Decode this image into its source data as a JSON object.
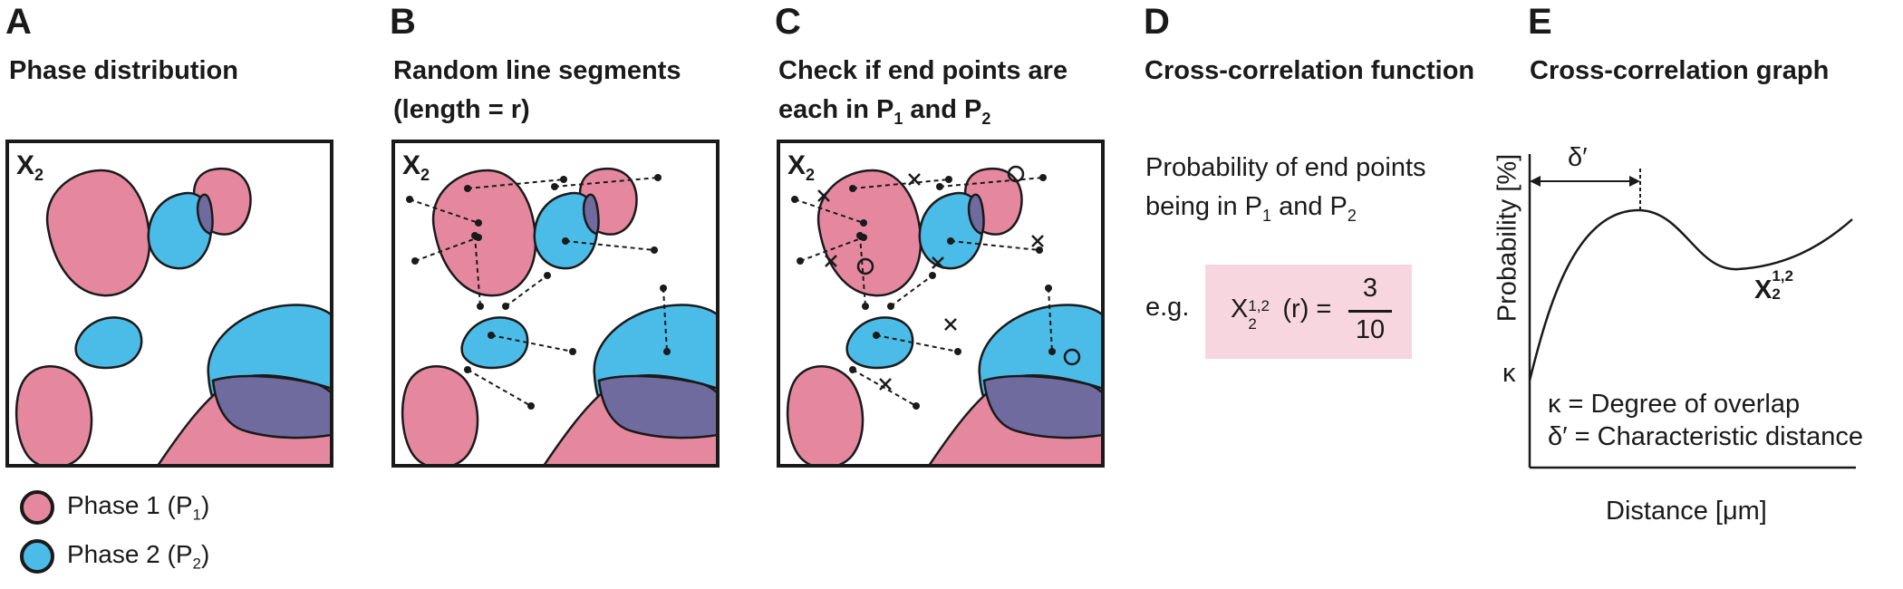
{
  "panels": {
    "a": {
      "letter": "A",
      "title": "Phase distribution"
    },
    "b": {
      "letter": "B",
      "title_line1": "Random line segments",
      "title_line2": "(length = r)"
    },
    "c": {
      "letter": "C",
      "title_line1": "Check if end points are",
      "title_line2_pre": "each in P",
      "title_line2_sub1": "1",
      "title_line2_mid": " and P",
      "title_line2_sub2": "2"
    },
    "d": {
      "letter": "D",
      "title": "Cross-correlation function"
    },
    "e": {
      "letter": "E",
      "title": "Cross-correlation graph"
    }
  },
  "box_label": {
    "base": "X",
    "sub": "2"
  },
  "legend": {
    "phase1": {
      "label_pre": "Phase 1 (P",
      "label_sub": "1",
      "label_post": ")",
      "color": "#e5889f"
    },
    "phase2": {
      "label_pre": "Phase 2 (P",
      "label_sub": "2",
      "label_post": ")",
      "color": "#4bbbe8"
    }
  },
  "colors": {
    "phase1": "#e5889f",
    "phase2": "#4bbbe8",
    "overlap": "#6f6b9e",
    "outline": "#1a1a1a",
    "formula_bg": "#f7d6df"
  },
  "panel_d": {
    "line1": "Probability of end points",
    "line2_pre": "being in P",
    "line2_sub1": "1",
    "line2_mid": " and P",
    "line2_sub2": "2",
    "eg": "e.g.",
    "formula_base": "X",
    "formula_sub": "2",
    "formula_sup": "1,2",
    "formula_arg": " (r) =",
    "numerator": "3",
    "denominator": "10"
  },
  "panel_e": {
    "ylabel": "Probability [%]",
    "xlabel": "Distance [μm]",
    "delta_label": "δ′",
    "kappa_label": "κ",
    "curve_label_base": "X",
    "curve_label_sub": "2",
    "curve_label_sup": "1,2",
    "legend_line1": "κ = Degree of overlap",
    "legend_line2": "δ′ = Characteristic distance"
  }
}
